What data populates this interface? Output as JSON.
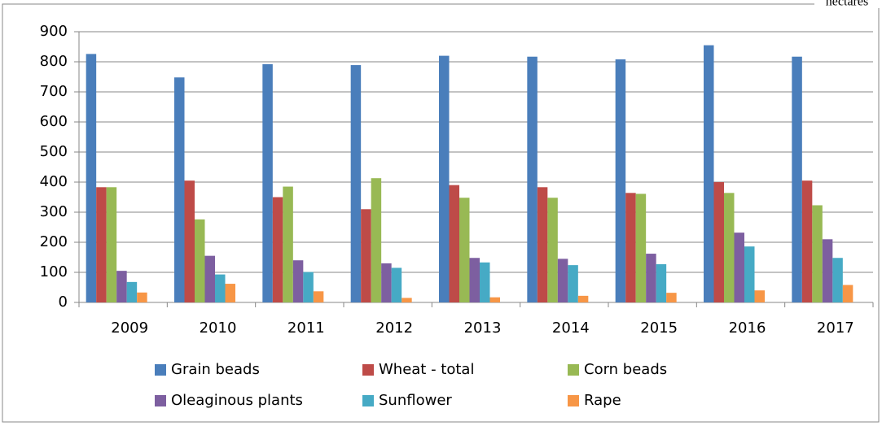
{
  "chart_data": {
    "type": "bar",
    "unit": "hectares",
    "categories": [
      "2009",
      "2010",
      "2011",
      "2012",
      "2013",
      "2014",
      "2015",
      "2016",
      "2017"
    ],
    "series": [
      {
        "name": "Grain beads",
        "color": "#4a7ebb",
        "values": [
          826,
          748,
          792,
          789,
          820,
          817,
          808,
          855,
          817
        ]
      },
      {
        "name": "Wheat - total",
        "color": "#be4b48",
        "values": [
          383,
          405,
          350,
          310,
          390,
          383,
          364,
          400,
          405
        ]
      },
      {
        "name": "Corn beads",
        "color": "#98b954",
        "values": [
          383,
          276,
          385,
          413,
          348,
          348,
          361,
          364,
          323
        ]
      },
      {
        "name": "Oleaginous plants",
        "color": "#7d5fa0",
        "values": [
          105,
          155,
          140,
          130,
          148,
          145,
          162,
          232,
          210
        ]
      },
      {
        "name": "Sunflower",
        "color": "#46aac5",
        "values": [
          68,
          93,
          101,
          115,
          133,
          124,
          127,
          186,
          148
        ]
      },
      {
        "name": "Rape",
        "color": "#f79646",
        "values": [
          33,
          62,
          37,
          15,
          17,
          22,
          32,
          40,
          58
        ]
      }
    ],
    "ylim": [
      0,
      900
    ],
    "yticks": [
      0,
      100,
      200,
      300,
      400,
      500,
      600,
      700,
      800,
      900
    ],
    "grid": true,
    "legend": "bottom"
  }
}
